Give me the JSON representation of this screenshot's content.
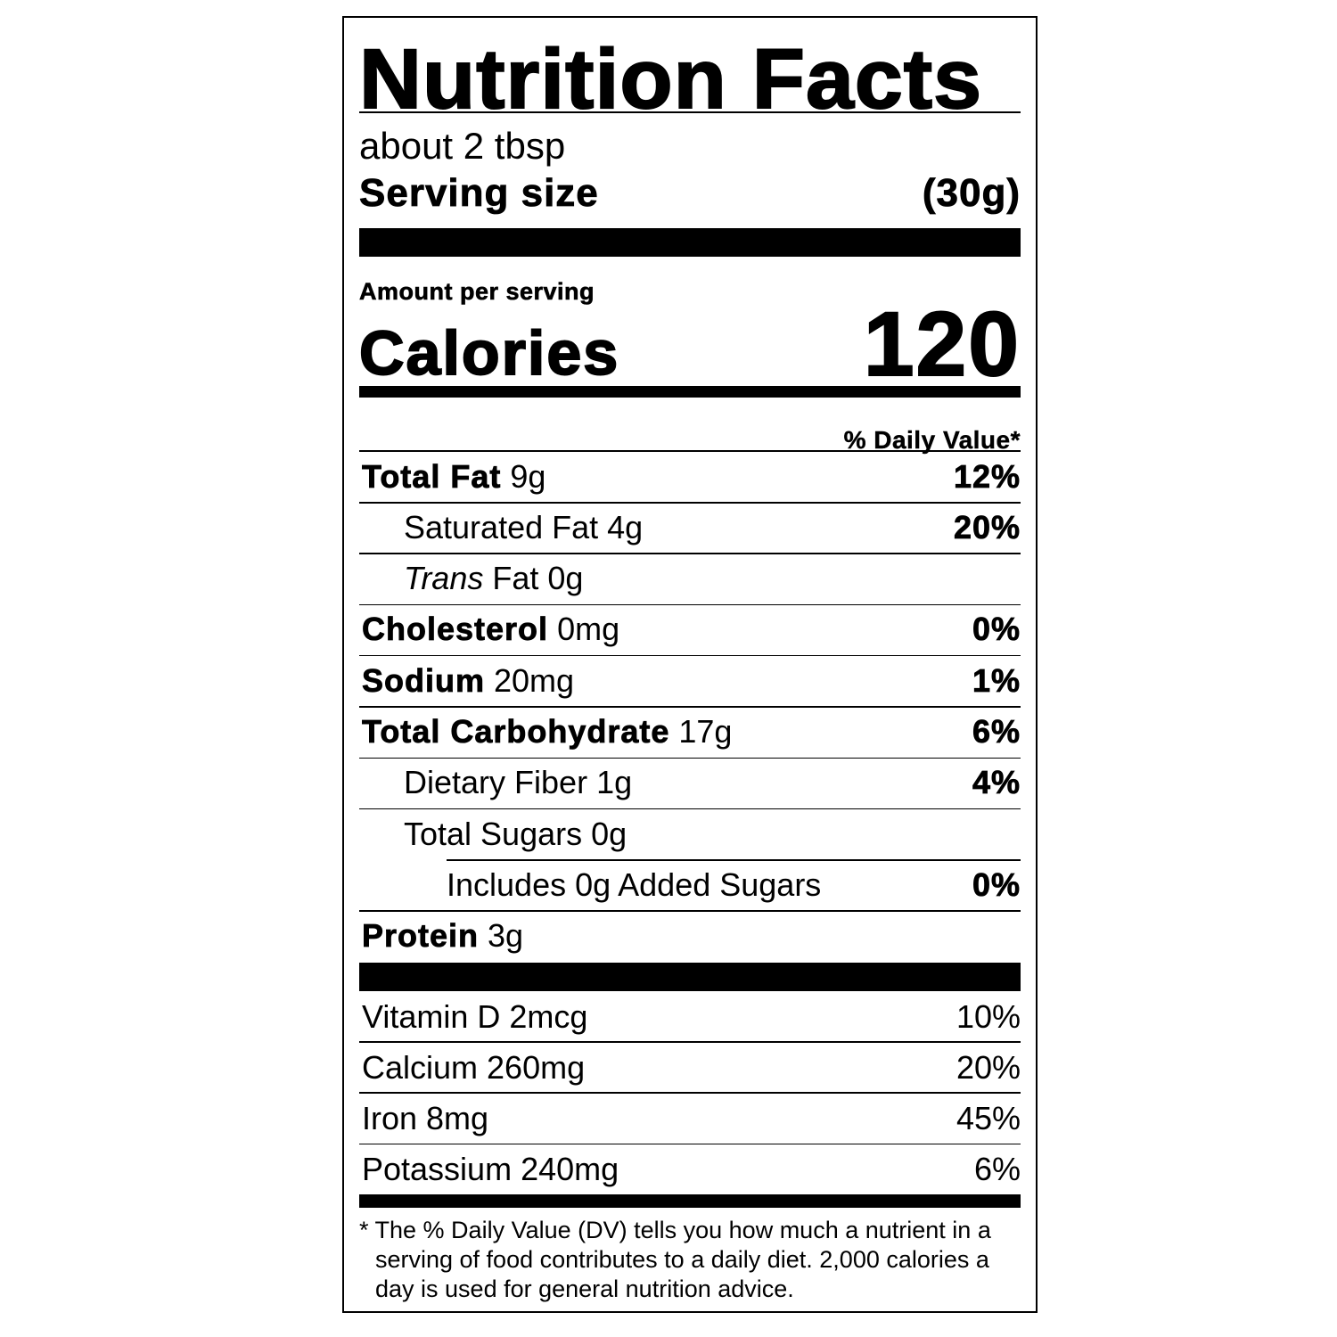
{
  "title": "Nutrition Facts",
  "serving": {
    "amount": "about 2 tbsp",
    "label": "Serving size",
    "weight": "(30g)"
  },
  "amount_per_serving": "Amount per serving",
  "calories": {
    "label": "Calories",
    "value": "120"
  },
  "daily_value_header": "% Daily Value*",
  "nutrients": [
    {
      "name": "Total Fat",
      "amount": "9g",
      "dv": "12%",
      "bold": true,
      "indent": 0
    },
    {
      "name": "Saturated Fat",
      "amount": "4g",
      "dv": "20%",
      "bold": false,
      "indent": 1
    },
    {
      "name_italic": "Trans",
      "name": "Fat",
      "amount": "0g",
      "dv": "",
      "bold": false,
      "indent": 1
    },
    {
      "name": "Cholesterol",
      "amount": "0mg",
      "dv": "0%",
      "bold": true,
      "indent": 0
    },
    {
      "name": "Sodium",
      "amount": "20mg",
      "dv": "1%",
      "bold": true,
      "indent": 0
    },
    {
      "name": "Total Carbohydrate",
      "amount": "17g",
      "dv": "6%",
      "bold": true,
      "indent": 0
    },
    {
      "name": "Dietary Fiber",
      "amount": "1g",
      "dv": "4%",
      "bold": false,
      "indent": 1
    },
    {
      "name": "Total Sugars",
      "amount": "0g",
      "dv": "",
      "bold": false,
      "indent": 1
    },
    {
      "name": "Includes 0g Added Sugars",
      "amount": "",
      "dv": "0%",
      "bold": false,
      "indent": 2
    },
    {
      "name": "Protein",
      "amount": "3g",
      "dv": "",
      "bold": true,
      "indent": 0
    }
  ],
  "vitamins": [
    {
      "name": "Vitamin D 2mcg",
      "dv": "10%"
    },
    {
      "name": "Calcium 260mg",
      "dv": "20%"
    },
    {
      "name": "Iron 8mg",
      "dv": "45%"
    },
    {
      "name": "Potassium 240mg",
      "dv": "6%"
    }
  ],
  "footnote": "* The % Daily Value (DV) tells you how much a nutrient in a serving of food contributes to a daily diet. 2,000 calories a day is used for general nutrition advice."
}
